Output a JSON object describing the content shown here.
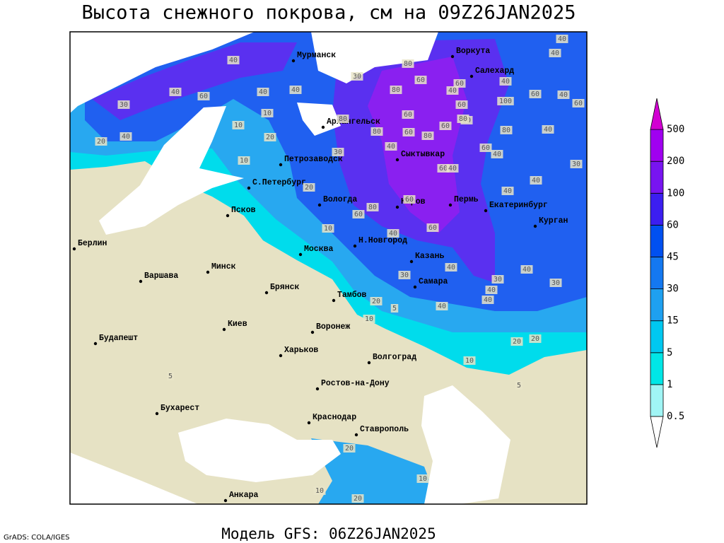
{
  "header": {
    "title": "Высота снежного покрова, см на 09Z26JAN2025"
  },
  "footer": {
    "model": "Модель GFS: 06Z26JAN2025",
    "credit": "GrADS: COLA/IGES"
  },
  "cities": [
    "Мурманск",
    "Воркута",
    "Салехард",
    "Архангельск",
    "Сыктывкар",
    "Петрозаводск",
    "С.Петербург",
    "Вологда",
    "Киров",
    "Пермь",
    "Екатеринбург",
    "Курган",
    "Псков",
    "Берлин",
    "Н.Новгород",
    "Москва",
    "Казань",
    "Минск",
    "Варшава",
    "Самара",
    "Брянск",
    "Тамбов",
    "Киев",
    "Воронеж",
    "Будапешт",
    "Харьков",
    "Волгоград",
    "Ростов-на-Дону",
    "Бухарест",
    "Краснодар",
    "Ставрополь",
    "Анкара"
  ],
  "contour_labels": [
    40,
    40,
    40,
    80,
    30,
    40,
    60,
    40,
    60,
    40,
    40,
    80,
    40,
    60,
    100,
    60,
    40,
    60,
    30,
    60,
    10,
    80,
    60,
    60,
    60,
    80,
    40,
    20,
    10,
    20,
    80,
    60,
    80,
    80,
    40,
    40,
    60,
    40,
    30,
    10,
    60,
    40,
    30,
    20,
    40,
    40,
    60,
    60,
    80,
    10,
    60,
    40,
    40,
    30,
    40,
    30,
    30,
    40,
    40,
    20,
    5,
    10,
    40,
    20,
    20,
    10,
    5,
    5,
    20,
    10,
    10,
    20
  ],
  "legend": {
    "levels": [
      0.5,
      1,
      5,
      15,
      30,
      45,
      60,
      100,
      200,
      500
    ],
    "colors": [
      "#ffffff",
      "#a0f5f5",
      "#00e6e6",
      "#00c8f0",
      "#1ea0f0",
      "#1478f0",
      "#0050f0",
      "#3c1ef0",
      "#7814f0",
      "#a000f0",
      "#d200d2"
    ]
  }
}
